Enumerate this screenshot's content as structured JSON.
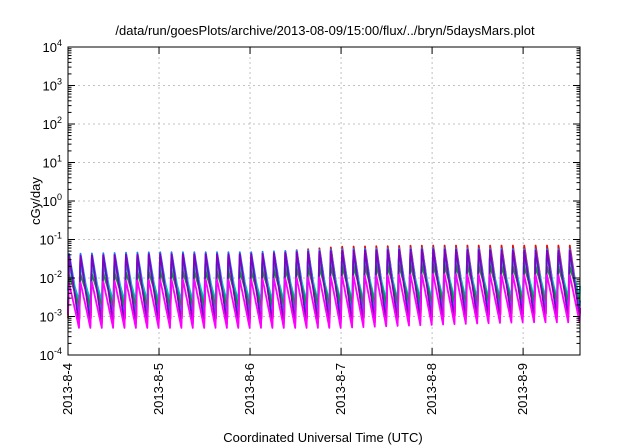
{
  "chart_data": {
    "type": "line",
    "title": "/data/run/goesPlots/archive/2013-08-09/15:00/flux/../bryn/5daysMars.plot",
    "xlabel": "Coordinated Universal Time (UTC)",
    "ylabel": "cGy/day",
    "y_scale": "log",
    "ylim": [
      0.0001,
      10000
    ],
    "y_ticks": [
      {
        "base": "10",
        "exp": "-4",
        "value": 0.0001
      },
      {
        "base": "10",
        "exp": "-3",
        "value": 0.001
      },
      {
        "base": "10",
        "exp": "-2",
        "value": 0.01
      },
      {
        "base": "10",
        "exp": "-1",
        "value": 0.1
      },
      {
        "base": "10",
        "exp": "0",
        "value": 1
      },
      {
        "base": "10",
        "exp": "1",
        "value": 10
      },
      {
        "base": "10",
        "exp": "2",
        "value": 100
      },
      {
        "base": "10",
        "exp": "3",
        "value": 1000
      },
      {
        "base": "10",
        "exp": "4",
        "value": 10000
      }
    ],
    "x_range": [
      "2013-08-04T00:00",
      "2013-08-09T15:00"
    ],
    "x_ticks": [
      "2013-8-4",
      "2013-8-5",
      "2013-8-6",
      "2013-8-7",
      "2013-8-8",
      "2013-8-9"
    ],
    "grid": true,
    "legend": "none",
    "pulse_period_hours": 3,
    "series": [
      {
        "color": "#e01010",
        "peaks": [
          0.035,
          0.045,
          0.04,
          0.065,
          0.07,
          0.07
        ],
        "troughs": [
          0.0009,
          0.0009,
          0.0009,
          0.0009,
          0.001,
          0.0012
        ]
      },
      {
        "color": "#1e7bff",
        "peaks": [
          0.045,
          0.05,
          0.05,
          0.06,
          0.065,
          0.06
        ],
        "troughs": [
          0.0012,
          0.0012,
          0.0012,
          0.0012,
          0.0013,
          0.0015
        ]
      },
      {
        "color": "#00c0c0",
        "peaks": [
          0.02,
          0.025,
          0.025,
          0.03,
          0.035,
          0.035
        ],
        "troughs": [
          0.0025,
          0.0025,
          0.0025,
          0.0025,
          0.0028,
          0.003
        ]
      },
      {
        "color": "#109040",
        "peaks": [
          0.012,
          0.015,
          0.015,
          0.02,
          0.022,
          0.02
        ],
        "troughs": [
          0.0018,
          0.0018,
          0.0018,
          0.002,
          0.0022,
          0.0024
        ]
      },
      {
        "color": "#8000c0",
        "peaks": [
          0.04,
          0.045,
          0.045,
          0.055,
          0.06,
          0.055
        ],
        "troughs": [
          0.0006,
          0.0006,
          0.0006,
          0.0006,
          0.0007,
          0.0009
        ]
      },
      {
        "color": "#ff00ff",
        "peaks": [
          0.008,
          0.01,
          0.01,
          0.012,
          0.014,
          0.013
        ],
        "troughs": [
          0.0005,
          0.0005,
          0.0005,
          0.0005,
          0.0006,
          0.0007
        ]
      }
    ]
  }
}
